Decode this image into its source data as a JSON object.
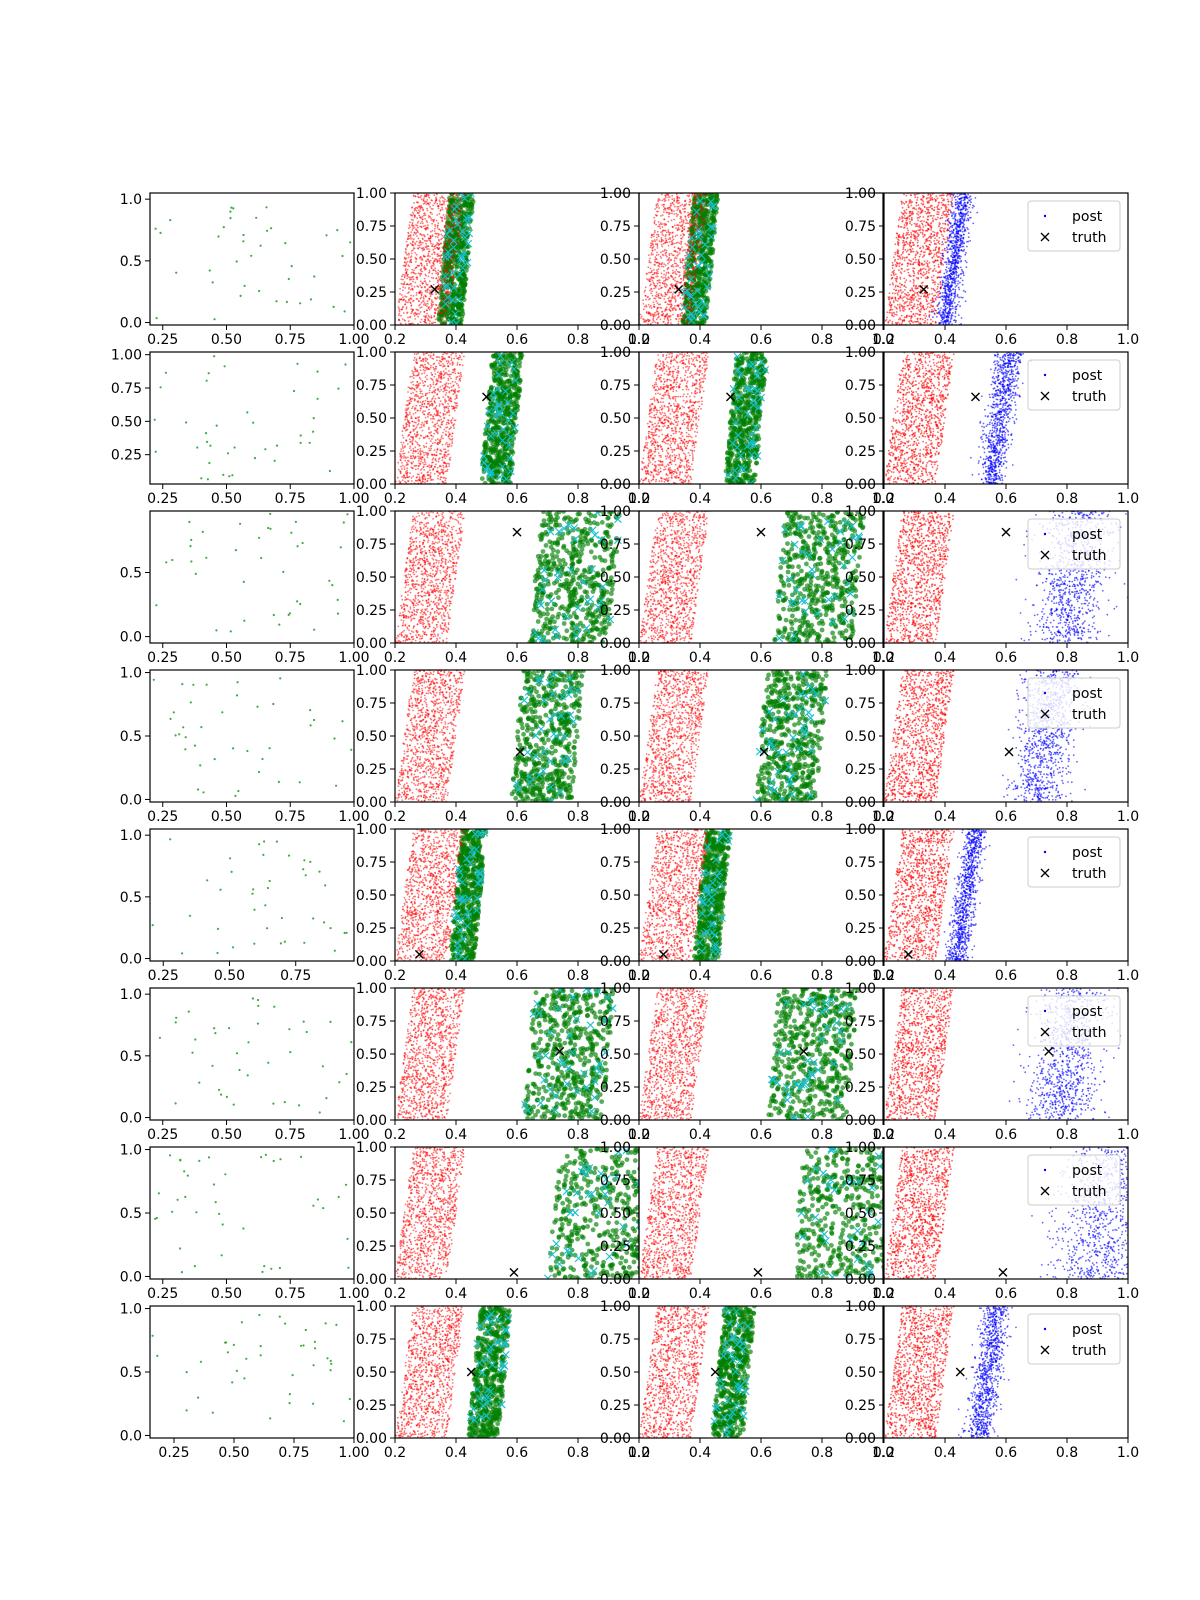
{
  "figure": {
    "rows": 8,
    "cols": 4,
    "legend_labels": {
      "post": "post",
      "truth": "truth"
    },
    "legend_location": "top-right",
    "colors": {
      "prior": "#2ca02c",
      "red": "#ff0000",
      "green": "#008000",
      "cyan": "#17becf",
      "blue": "#0000ff",
      "truth": "#000000"
    }
  },
  "axes": {
    "x_ticks_panel": [
      "0.2",
      "0.4",
      "0.6",
      "0.8",
      "1.0"
    ],
    "x_ticks_prior": {
      "standard": [
        "0.25",
        "0.50",
        "0.75",
        "1.00"
      ],
      "short": [
        "0.25",
        "0.50",
        "0.75"
      ]
    },
    "y_ticks_panel": [
      "0.00",
      "0.25",
      "0.50",
      "0.75",
      "1.00"
    ],
    "y_ticks_prior_a": [
      "0.0",
      "0.5",
      "1.0"
    ],
    "y_ticks_prior_b": [
      "0.25",
      "0.50",
      "0.75",
      "1.00"
    ],
    "y_ticks_prior_c": [
      "0.0",
      "0.5"
    ]
  },
  "chart_data": [
    {
      "type": "scatter",
      "row": 1,
      "prior_xlim": [
        0.2,
        1.0
      ],
      "prior_ylim": [
        -0.02,
        1.05
      ],
      "prior_yticks": "a",
      "prior_xticks": "standard",
      "prior_points": 40,
      "truth": [
        0.33,
        0.27
      ],
      "green_band": [
        0.36,
        0.44
      ],
      "green_width": 0.08,
      "legend_series": [
        "post",
        "truth"
      ]
    },
    {
      "type": "scatter",
      "row": 2,
      "prior_xlim": [
        0.2,
        1.0
      ],
      "prior_ylim": [
        0.03,
        1.02
      ],
      "prior_yticks": "b",
      "prior_xticks": "standard",
      "prior_points": 40,
      "truth": [
        0.5,
        0.66
      ],
      "green_band": [
        0.5,
        0.54
      ],
      "green_width": 0.1,
      "legend_series": [
        "post",
        "truth"
      ]
    },
    {
      "type": "scatter",
      "row": 3,
      "prior_xlim": [
        0.2,
        1.0
      ],
      "prior_ylim": [
        -0.05,
        0.98
      ],
      "prior_yticks": "c",
      "prior_xticks": "standard",
      "prior_points": 40,
      "truth": [
        0.6,
        0.84
      ],
      "green_band": [
        0.66,
        0.7
      ],
      "green_width": 0.26,
      "legend_series": [
        "post",
        "truth"
      ]
    },
    {
      "type": "scatter",
      "row": 4,
      "prior_xlim": [
        0.2,
        1.0
      ],
      "prior_ylim": [
        -0.02,
        1.02
      ],
      "prior_yticks": "a",
      "prior_xticks": "standard",
      "prior_points": 40,
      "truth": [
        0.61,
        0.38
      ],
      "green_band": [
        0.6,
        0.64
      ],
      "green_width": 0.2,
      "legend_series": [
        "post",
        "truth"
      ]
    },
    {
      "type": "scatter",
      "row": 5,
      "prior_xlim": [
        0.2,
        0.97
      ],
      "prior_ylim": [
        -0.02,
        1.05
      ],
      "prior_yticks": "a",
      "prior_xticks": "short",
      "prior_points": 40,
      "truth": [
        0.28,
        0.05
      ],
      "green_band": [
        0.4,
        0.46
      ],
      "green_width": 0.08,
      "legend_series": [
        "post",
        "truth"
      ]
    },
    {
      "type": "scatter",
      "row": 6,
      "prior_xlim": [
        0.2,
        1.0
      ],
      "prior_ylim": [
        -0.02,
        1.05
      ],
      "prior_yticks": "a",
      "prior_xticks": "standard",
      "prior_points": 40,
      "truth": [
        0.74,
        0.52
      ],
      "green_band": [
        0.64,
        0.68
      ],
      "green_width": 0.26,
      "legend_series": [
        "post",
        "truth"
      ]
    },
    {
      "type": "scatter",
      "row": 7,
      "prior_xlim": [
        0.2,
        1.0
      ],
      "prior_ylim": [
        -0.02,
        1.02
      ],
      "prior_yticks": "a",
      "prior_xticks": "standard",
      "prior_points": 40,
      "truth": [
        0.59,
        0.05
      ],
      "green_band": [
        0.72,
        0.78
      ],
      "green_width": 0.36,
      "legend_series": [
        "post",
        "truth"
      ]
    },
    {
      "type": "scatter",
      "row": 8,
      "prior_xlim": [
        0.15,
        1.0
      ],
      "prior_ylim": [
        -0.02,
        1.02
      ],
      "prior_yticks": "a",
      "prior_xticks": "standard",
      "prior_points": 40,
      "truth": [
        0.45,
        0.5
      ],
      "green_band": [
        0.46,
        0.5
      ],
      "green_width": 0.1,
      "legend_series": [
        "post",
        "truth"
      ]
    }
  ]
}
